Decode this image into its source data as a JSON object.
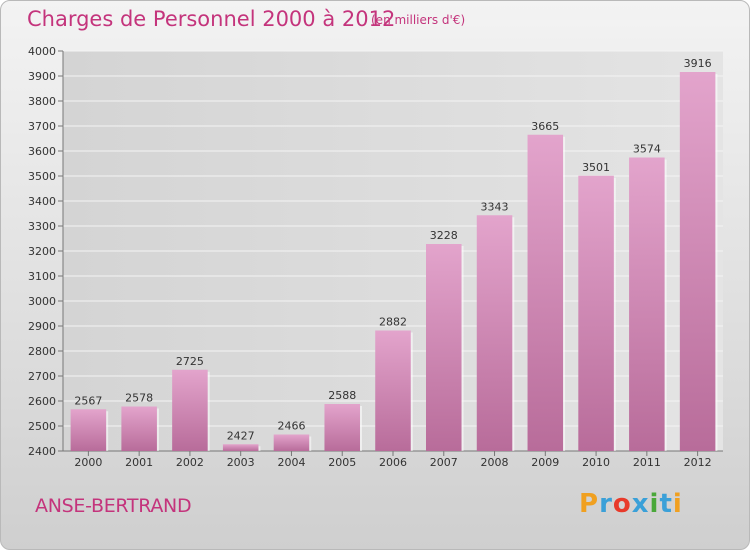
{
  "title": "Charges de Personnel 2000 à 2012",
  "subtitle": "(en milliers d'€)",
  "commune": "ANSE-BERTRAND",
  "logo": {
    "text": "Proxiti",
    "colors": [
      "#f0a020",
      "#3aa0d8",
      "#e83a2a",
      "#3aa0d8",
      "#4aa83a",
      "#3aa0d8",
      "#f0a020"
    ]
  },
  "colors": {
    "bar_top": "#e3a4cc",
    "bar_bottom": "#b86c9a",
    "accent": "#c4347c"
  },
  "chart_data": {
    "type": "bar",
    "categories": [
      "2000",
      "2001",
      "2002",
      "2003",
      "2004",
      "2005",
      "2006",
      "2007",
      "2008",
      "2009",
      "2010",
      "2011",
      "2012"
    ],
    "values": [
      2567,
      2578,
      2725,
      2427,
      2466,
      2588,
      2882,
      3228,
      3343,
      3665,
      3501,
      3574,
      3916
    ],
    "ylim": [
      2400,
      4000
    ],
    "yticks": [
      2400,
      2500,
      2600,
      2700,
      2800,
      2900,
      3000,
      3100,
      3200,
      3300,
      3400,
      3500,
      3600,
      3700,
      3800,
      3900,
      4000
    ],
    "grid": true,
    "title": "Charges de Personnel 2000 à 2012",
    "xlabel": "",
    "ylabel": ""
  }
}
